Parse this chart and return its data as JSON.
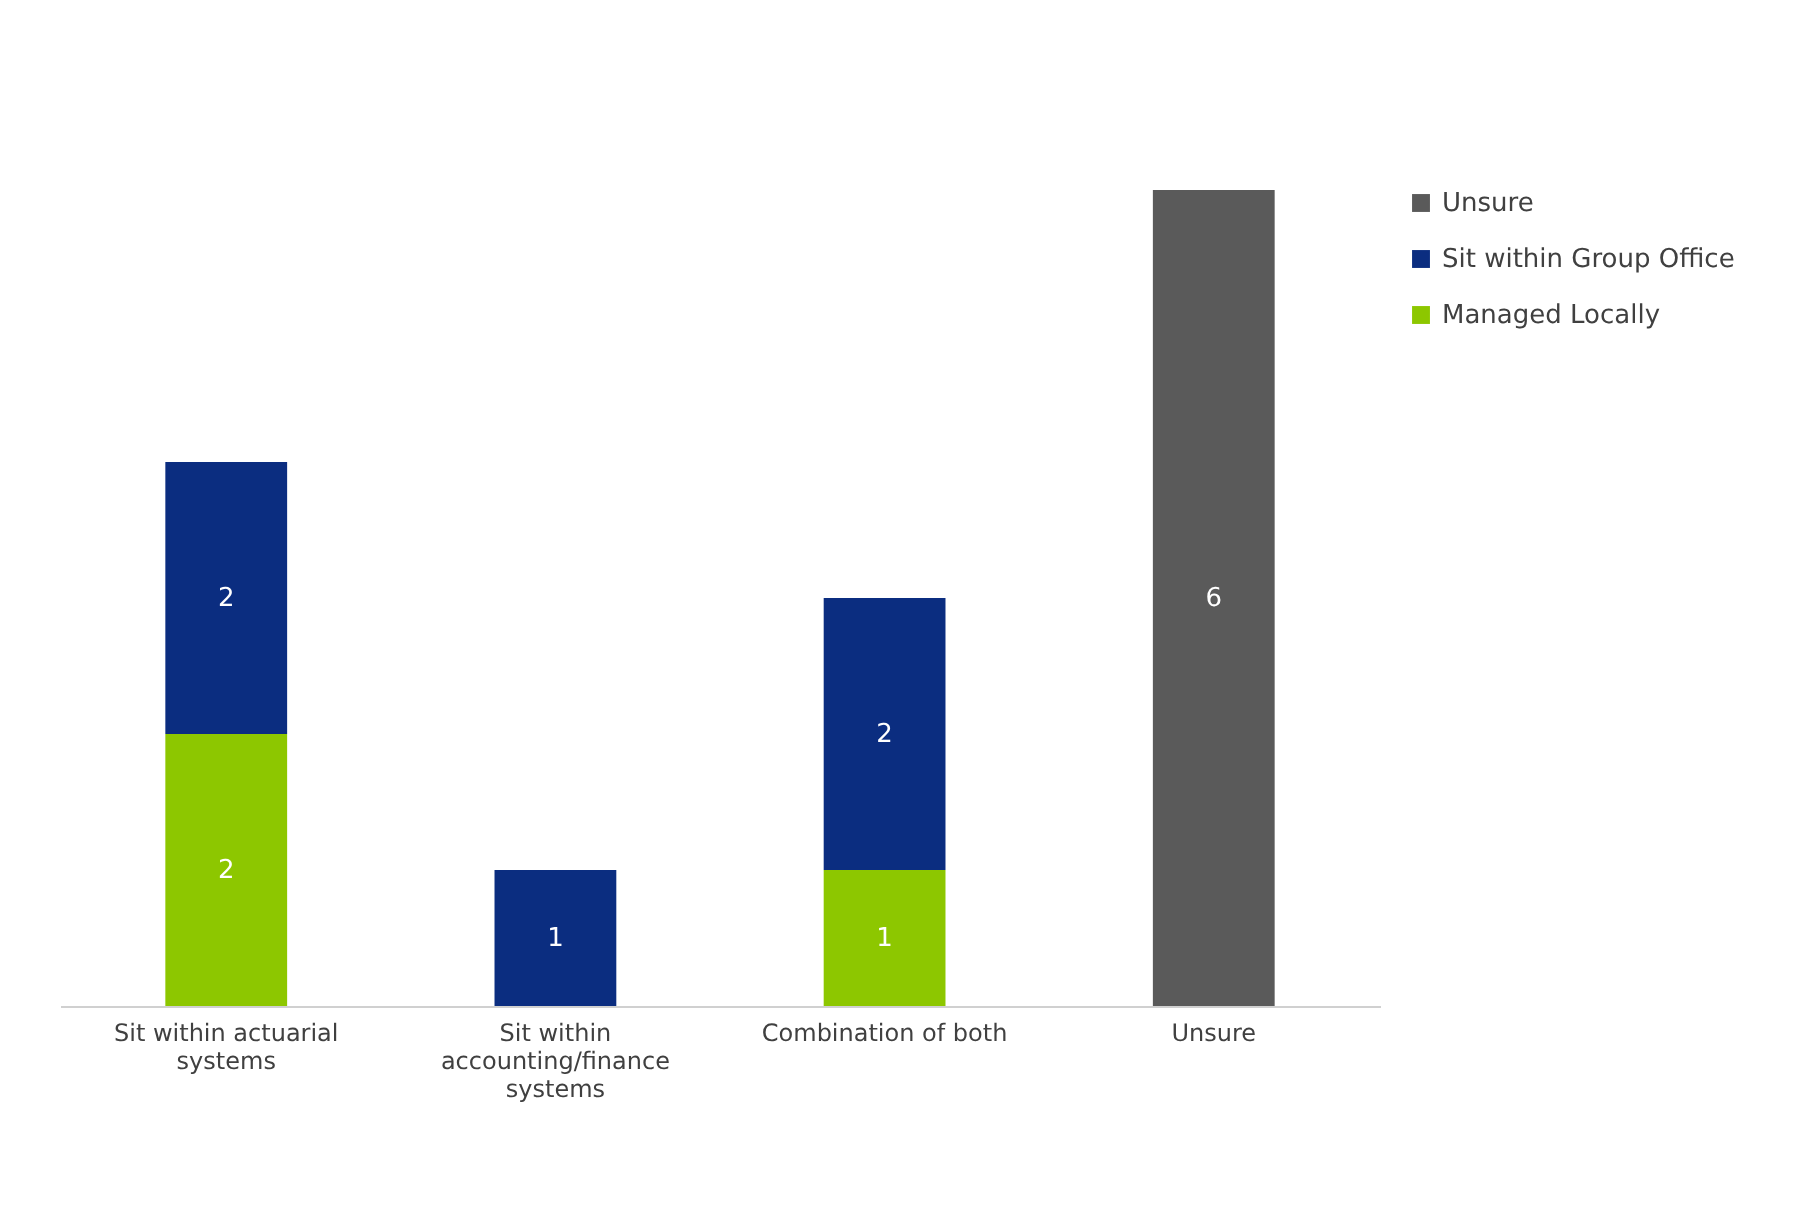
{
  "chart_data": {
    "type": "bar",
    "stacked": true,
    "data_labels": true,
    "legend": "right",
    "grid": false,
    "categories": [
      "Sit within actuarial systems",
      "Sit within accounting/finance systems",
      "Combination of both",
      "Unsure"
    ],
    "series": [
      {
        "name": "Managed Locally",
        "color": "#8dc700",
        "values": [
          2,
          null,
          1,
          null
        ]
      },
      {
        "name": "Sit within Group Office",
        "color": "#0b2d80",
        "values": [
          2,
          1,
          2,
          null
        ]
      },
      {
        "name": "Unsure",
        "color": "#5a5a5a",
        "values": [
          null,
          null,
          null,
          6
        ]
      }
    ]
  }
}
